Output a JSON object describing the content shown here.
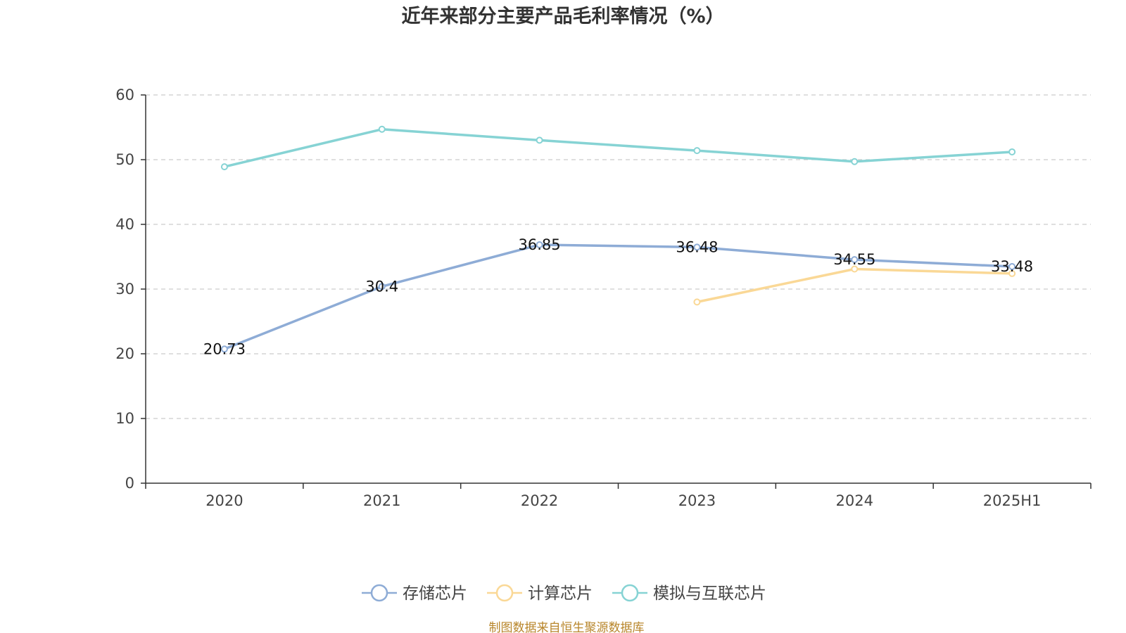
{
  "chart_data": {
    "type": "line",
    "title": "近年来部分主要产品毛利率情况（%）",
    "categories": [
      "2020",
      "2021",
      "2022",
      "2023",
      "2024",
      "2025H1"
    ],
    "ylim": [
      0,
      60
    ],
    "yticks": [
      0,
      10,
      20,
      30,
      40,
      50,
      60
    ],
    "grid": true,
    "legend_position": "bottom",
    "series": [
      {
        "name": "存储芯片",
        "color": "#8eacd6",
        "values": [
          20.73,
          30.4,
          36.85,
          36.48,
          34.55,
          33.48
        ],
        "show_labels": true
      },
      {
        "name": "计算芯片",
        "color": "#fad896",
        "values": [
          null,
          null,
          null,
          28.0,
          33.1,
          32.4
        ],
        "show_labels": false
      },
      {
        "name": "模拟与互联芯片",
        "color": "#86d3d4",
        "values": [
          48.9,
          54.7,
          53.0,
          51.4,
          49.7,
          51.2
        ],
        "show_labels": false
      }
    ]
  },
  "source": "制图数据来自恒生聚源数据库"
}
